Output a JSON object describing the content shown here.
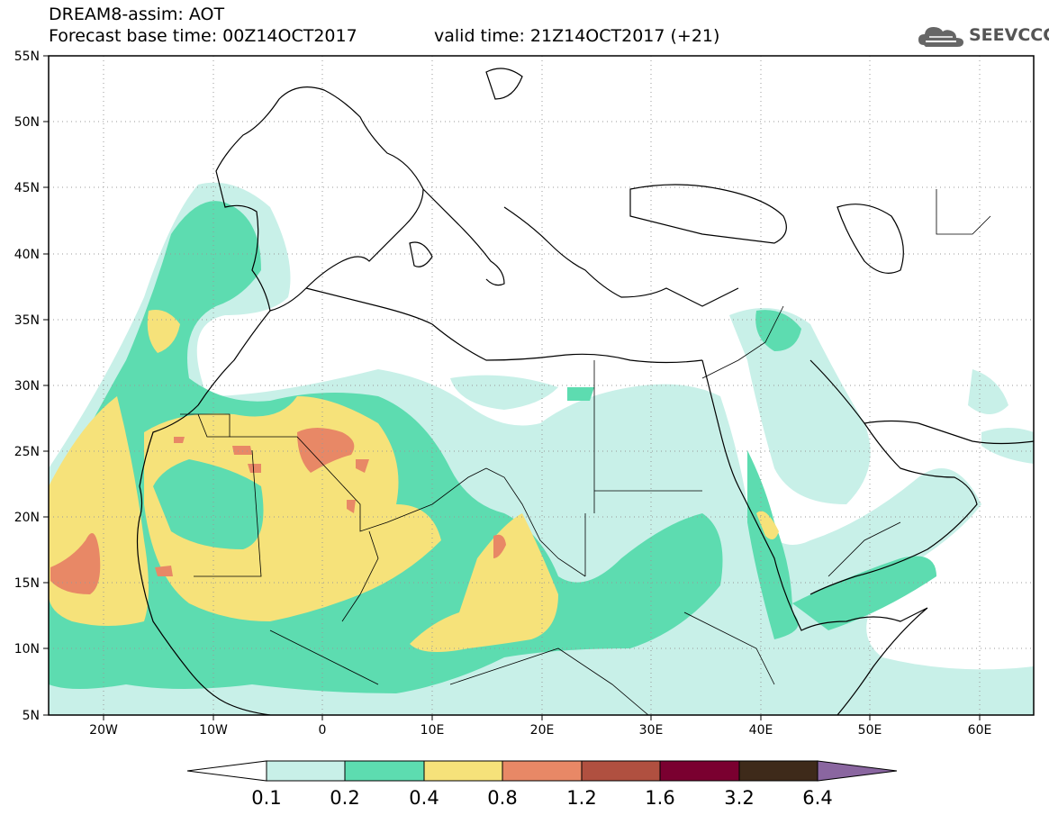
{
  "title": {
    "line1": "DREAM8-assim: AOT",
    "line2": "Forecast base time: 00Z14OCT2017",
    "valid": "valid time: 21Z14OCT2017 (+21)"
  },
  "logo": {
    "text": "SEEVCCC",
    "icon": "cloud-icon"
  },
  "map": {
    "lon_range": [
      -25,
      65
    ],
    "lat_range": [
      5,
      55
    ],
    "lat_ticks": [
      "55N",
      "50N",
      "45N",
      "40N",
      "35N",
      "30N",
      "25N",
      "20N",
      "15N",
      "10N",
      "5N"
    ],
    "lon_ticks": [
      "20W",
      "10W",
      "0",
      "10E",
      "20E",
      "30E",
      "40E",
      "50E",
      "60E"
    ],
    "grid": "dotted",
    "background": "#ffffff",
    "coastline_color": "#000000"
  },
  "colorbar": {
    "levels": [
      "0.1",
      "0.2",
      "0.4",
      "0.8",
      "1.2",
      "1.6",
      "3.2",
      "6.4"
    ],
    "colors": [
      "#ffffff",
      "#c8f0e8",
      "#5ddcb0",
      "#f6e27a",
      "#e88866",
      "#b05040",
      "#7a0030",
      "#3e2a1a",
      "#8a66a0"
    ]
  }
}
